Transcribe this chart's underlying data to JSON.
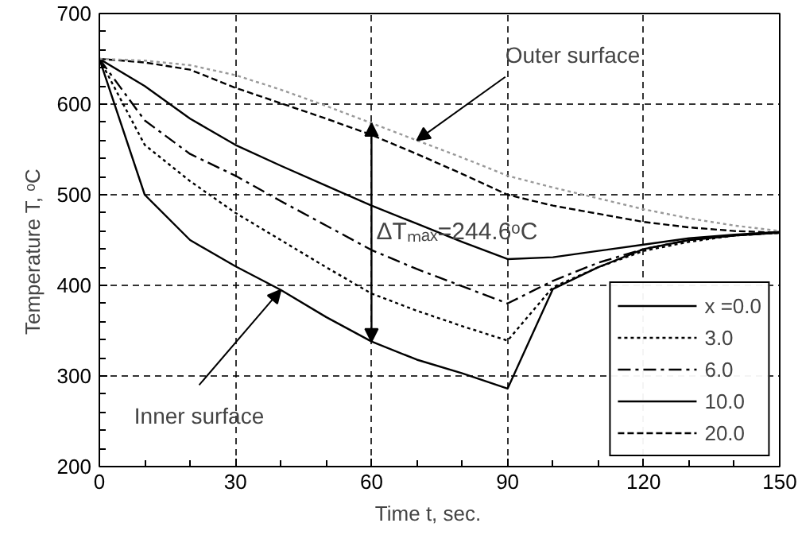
{
  "chart_data": {
    "type": "line",
    "xlabel": "Time   t,   sec.",
    "ylabel": "Temperature   T,   ᵒC",
    "x": [
      0,
      10,
      20,
      30,
      40,
      50,
      60,
      70,
      80,
      90,
      100,
      110,
      120,
      130,
      140,
      150
    ],
    "series": [
      {
        "name": "x =0.0",
        "color": "#000000",
        "line_style": "solid",
        "values": [
          650,
          500,
          450,
          421,
          395,
          365,
          338,
          318,
          303,
          286,
          396,
          420,
          440,
          450,
          455,
          458
        ]
      },
      {
        "name": "3.0",
        "color": "#000000",
        "line_style": "dotted",
        "values": [
          650,
          555,
          515,
          480,
          450,
          420,
          391,
          372,
          355,
          339,
          398,
          420,
          438,
          448,
          455,
          458
        ]
      },
      {
        "name": "6.0",
        "color": "#000000",
        "line_style": "dashdot",
        "values": [
          650,
          582,
          545,
          521,
          493,
          466,
          439,
          418,
          399,
          380,
          405,
          425,
          440,
          450,
          455,
          458
        ]
      },
      {
        "name": "10.0",
        "color": "#000000",
        "line_style": "solid",
        "values": [
          650,
          620,
          584,
          555,
          532,
          510,
          488,
          468,
          448,
          429,
          431,
          438,
          445,
          452,
          456,
          459
        ]
      },
      {
        "name": "20.0",
        "color": "#000000",
        "line_style": "dashed",
        "values": [
          650,
          646,
          638,
          618,
          601,
          584,
          566,
          545,
          523,
          500,
          488,
          479,
          470,
          464,
          460,
          458
        ]
      },
      {
        "color": "#999999",
        "line_style": "dotted",
        "values": [
          650,
          648,
          643,
          632,
          616,
          598,
          579,
          560,
          541,
          521,
          508,
          496,
          484,
          474,
          466,
          460
        ]
      }
    ],
    "xlim": [
      0,
      150
    ],
    "xticks": [
      0,
      30,
      60,
      90,
      120,
      150
    ],
    "ylim": [
      200,
      700
    ],
    "yticks": [
      200,
      300,
      400,
      500,
      600,
      700
    ],
    "grid": true,
    "legend": "bottom right",
    "marker": "none",
    "annotations": [
      {
        "text": "Outer surface",
        "x": 70,
        "y": 560
      },
      {
        "text": "Inner surface",
        "x": 40,
        "y": 395
      },
      {
        "text": "ΔTₘₐₓ=244.6ᵒC",
        "x": 60,
        "y": 338
      }
    ]
  }
}
